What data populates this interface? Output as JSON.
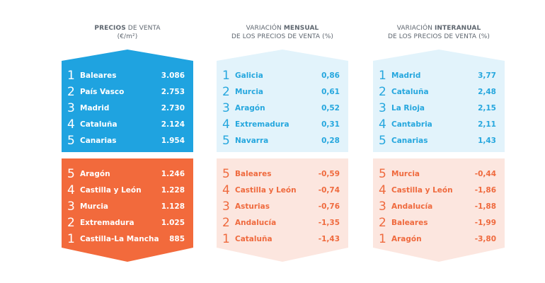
{
  "panels": [
    {
      "title_bold": "PRECIOS",
      "title_rest": " DE VENTA",
      "title_line2": "(€/m²)",
      "top": [
        {
          "rank": "1",
          "name": "Baleares",
          "value": "3.086"
        },
        {
          "rank": "2",
          "name": "País Vasco",
          "value": "2.753"
        },
        {
          "rank": "3",
          "name": "Madrid",
          "value": "2.730"
        },
        {
          "rank": "4",
          "name": "Cataluña",
          "value": "2.124"
        },
        {
          "rank": "5",
          "name": "Canarias",
          "value": "1.954"
        }
      ],
      "bottom": [
        {
          "rank": "5",
          "name": "Aragón",
          "value": "1.246"
        },
        {
          "rank": "4",
          "name": "Castilla y León",
          "value": "1.228"
        },
        {
          "rank": "3",
          "name": "Murcia",
          "value": "1.128"
        },
        {
          "rank": "2",
          "name": "Extremadura",
          "value": "1.025"
        },
        {
          "rank": "1",
          "name": "Castilla-La Mancha",
          "value": "885"
        }
      ]
    },
    {
      "title_pre": "VARIACIÓN ",
      "title_bold": "MENSUAL",
      "title_line2": "DE LOS PRECIOS DE VENTA (%)",
      "top": [
        {
          "rank": "1",
          "name": "Galicia",
          "value": "0,86"
        },
        {
          "rank": "2",
          "name": "Murcia",
          "value": "0,61"
        },
        {
          "rank": "3",
          "name": "Aragón",
          "value": "0,52"
        },
        {
          "rank": "4",
          "name": "Extremadura",
          "value": "0,31"
        },
        {
          "rank": "5",
          "name": "Navarra",
          "value": "0,28"
        }
      ],
      "bottom": [
        {
          "rank": "5",
          "name": "Baleares",
          "value": "-0,59"
        },
        {
          "rank": "4",
          "name": "Castilla y León",
          "value": "-0,74"
        },
        {
          "rank": "3",
          "name": "Asturias",
          "value": "-0,76"
        },
        {
          "rank": "2",
          "name": "Andalucía",
          "value": "-1,35"
        },
        {
          "rank": "1",
          "name": "Cataluña",
          "value": "-1,43"
        }
      ]
    },
    {
      "title_pre": "VARIACIÓN ",
      "title_bold": "INTERANUAL",
      "title_line2": "DE LOS PRECIOS DE VENTA (%)",
      "top": [
        {
          "rank": "1",
          "name": "Madrid",
          "value": "3,77"
        },
        {
          "rank": "2",
          "name": "Cataluña",
          "value": "2,48"
        },
        {
          "rank": "3",
          "name": "La Rioja",
          "value": "2,15"
        },
        {
          "rank": "4",
          "name": "Cantabria",
          "value": "2,11"
        },
        {
          "rank": "5",
          "name": "Canarias",
          "value": "1,43"
        }
      ],
      "bottom": [
        {
          "rank": "5",
          "name": "Murcia",
          "value": "-0,44"
        },
        {
          "rank": "4",
          "name": "Castilla y León",
          "value": "-1,86"
        },
        {
          "rank": "3",
          "name": "Andalucía",
          "value": "-1,88"
        },
        {
          "rank": "2",
          "name": "Baleares",
          "value": "-1,99"
        },
        {
          "rank": "1",
          "name": "Aragón",
          "value": "-3,80"
        }
      ]
    }
  ]
}
